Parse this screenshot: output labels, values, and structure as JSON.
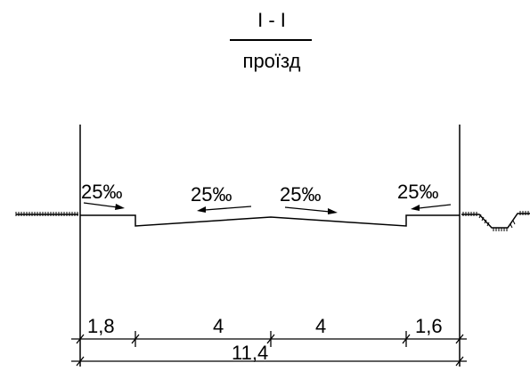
{
  "section": {
    "title": "I - I",
    "subtitle": "проїзд"
  },
  "slopes": [
    "25‰",
    "25‰",
    "25‰",
    "25‰"
  ],
  "dimensions": {
    "segments": [
      "1,8",
      "4",
      "4",
      "1,6"
    ],
    "total": "11,4"
  }
}
